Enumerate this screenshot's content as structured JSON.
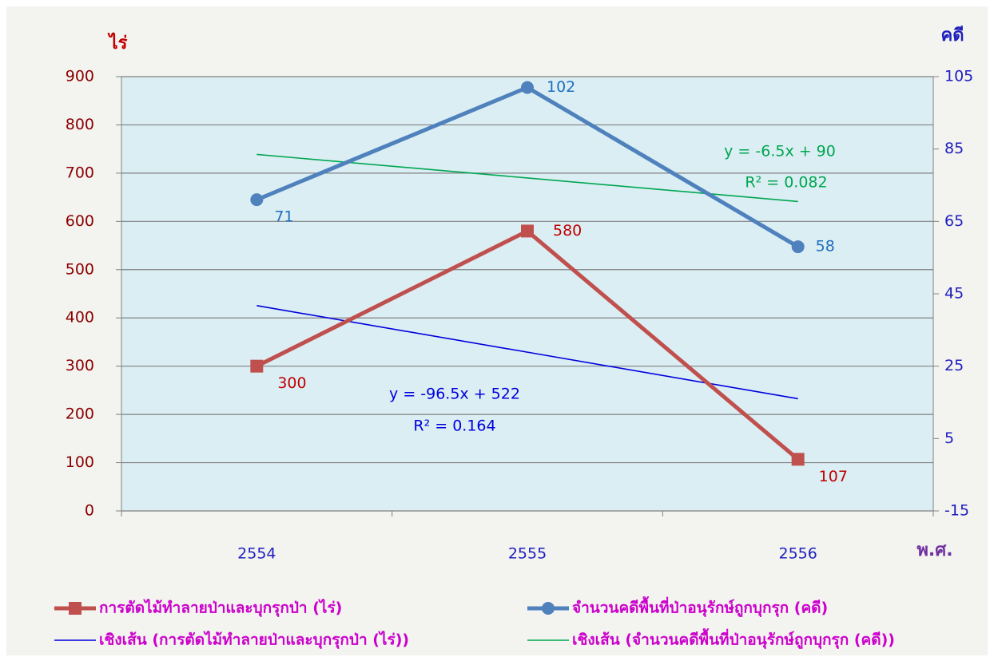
{
  "chart_data": {
    "type": "line",
    "categories": [
      "2554",
      "2555",
      "2556"
    ],
    "x_label": "พ.ศ.",
    "y_label": "ไร่",
    "y2_label": "คดี",
    "ylim": [
      0,
      900
    ],
    "yticks": [
      0,
      100,
      200,
      300,
      400,
      500,
      600,
      700,
      800,
      900
    ],
    "y2lim": [
      -15,
      105
    ],
    "y2ticks": [
      -15,
      5,
      25,
      45,
      65,
      85,
      105
    ],
    "grid": true,
    "legend": "bottom",
    "series": [
      {
        "name": "การตัดไม้ทำลายป่าและบุกรุกป่า (ไร่)",
        "color": "#c0504d",
        "marker": "square",
        "values": [
          300,
          580,
          107
        ]
      },
      {
        "name": "จำนวนคดีพื้นที่ป่าอนุรักษ์ถูกบุกรุก (คดี)",
        "color": "#4f81bd",
        "marker": "circle",
        "axis": "y2",
        "values": [
          71,
          102,
          58
        ]
      },
      {
        "name": "เชิงเส้น (การตัดไม้ทำลายป่าและบุกรุกป่า (ไร่))",
        "color": "#0000dd",
        "values": [
          425.5,
          329,
          232.5
        ]
      },
      {
        "name": "เชิงเส้น (จำนวนคดีพื้นที่ป่าอนุรักษ์ถูกบุกรุก (คดี))",
        "color": "#00a650",
        "axis": "y2",
        "values": [
          83.5,
          77,
          70.5
        ]
      }
    ],
    "annotations": [
      {
        "text": "y = -96.5x + 522",
        "color": "#0000dd"
      },
      {
        "text": "R² = 0.164",
        "color": "#0000dd"
      },
      {
        "text": "y = -6.5x + 90",
        "color": "#00a650"
      },
      {
        "text": "R² = 0.082",
        "color": "#00a650"
      }
    ]
  }
}
